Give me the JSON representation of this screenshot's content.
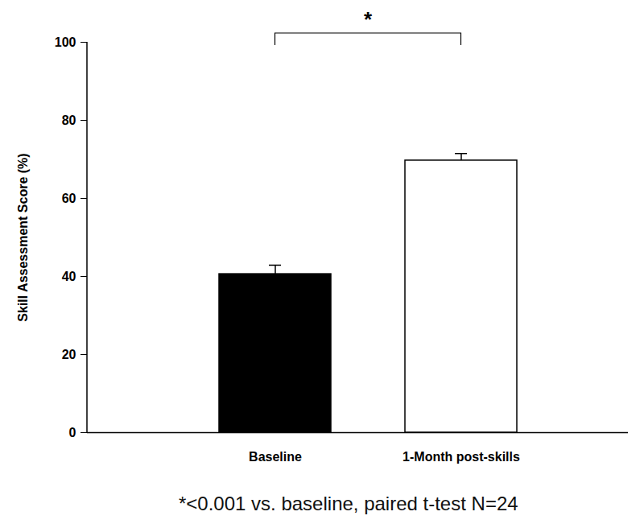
{
  "chart_data": {
    "type": "bar",
    "ylabel": "Skill Assessment Score (%)",
    "categories": [
      "Baseline",
      "1-Month post-skills"
    ],
    "values": [
      40.6,
      69.7
    ],
    "error": [
      2.3,
      1.8
    ],
    "colors": [
      "#000000",
      "#ffffff"
    ],
    "ylim": [
      0,
      100
    ],
    "yticks": [
      0,
      20,
      40,
      60,
      80,
      100
    ],
    "significance": {
      "text": "*",
      "between": [
        "Baseline",
        "1-Month post-skills"
      ]
    },
    "caption": "*<0.001 vs. baseline, paired t-test N=24"
  }
}
